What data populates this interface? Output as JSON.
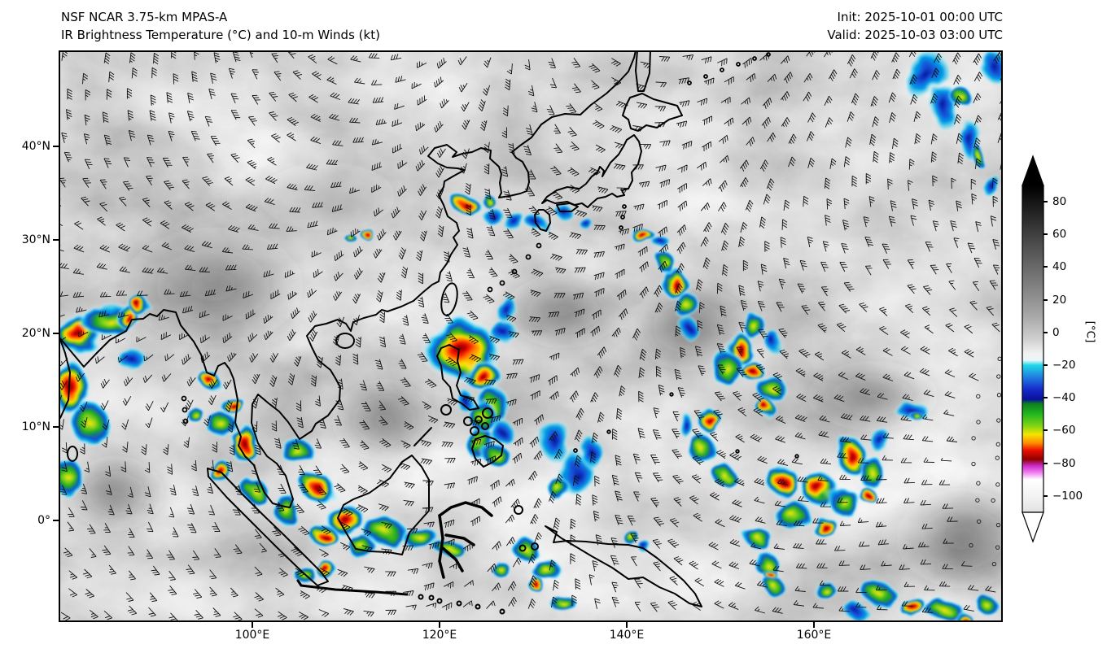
{
  "header": {
    "model": "NSF NCAR 3.75-km MPAS-A",
    "product": "IR Brightness Temperature (°C) and 10-m Winds (kt)",
    "init": "Init: 2025-10-01 00:00 UTC",
    "valid": "Valid: 2025-10-03 03:00 UTC"
  },
  "axes": {
    "lat_ticks": [
      "40°N",
      "30°N",
      "20°N",
      "10°N",
      "0°"
    ],
    "lon_ticks": [
      "100°E",
      "120°E",
      "140°E",
      "160°E"
    ]
  },
  "colorbar": {
    "unit": "[°C]",
    "ticks": [
      "80",
      "60",
      "40",
      "20",
      "0",
      "−20",
      "−40",
      "−60",
      "−80",
      "−100"
    ],
    "extend": "both",
    "scale": [
      {
        "value": 90,
        "color": "#000000"
      },
      {
        "value": 40,
        "color": "#7d7d7d"
      },
      {
        "value": 0,
        "color": "#e8e8e8"
      },
      {
        "value": -20,
        "color": "#20d8e8"
      },
      {
        "value": -40,
        "color": "#0a129b"
      },
      {
        "value": -52,
        "color": "#22b81e"
      },
      {
        "value": -62,
        "color": "#f5e400"
      },
      {
        "value": -68,
        "color": "#ff8c00"
      },
      {
        "value": -73,
        "color": "#ee0f00"
      },
      {
        "value": -78,
        "color": "#8f0000"
      },
      {
        "value": -82,
        "color": "#cc2ccc"
      },
      {
        "value": -95,
        "color": "#ffffff"
      }
    ]
  }
}
